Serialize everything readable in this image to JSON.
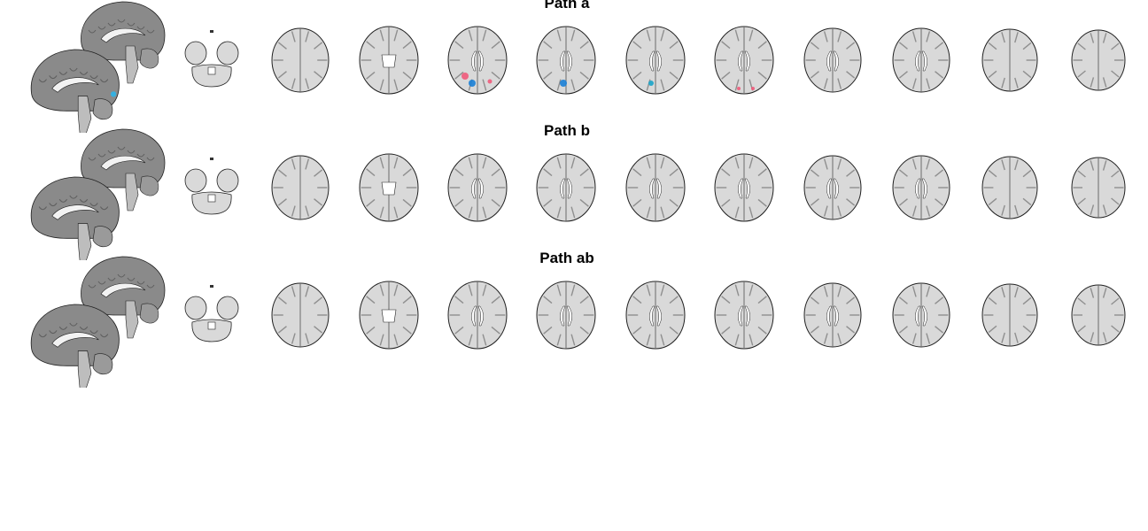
{
  "panels": [
    {
      "title": "Path a"
    },
    {
      "title": "Path b"
    },
    {
      "title": "Path ab"
    }
  ],
  "colors": {
    "cortex": "#8a8a8a",
    "white_matter": "#d9d9d9",
    "outline": "#222222",
    "positive_cluster": "#f05a7a",
    "negative_cluster": "#1a7fd6"
  }
}
